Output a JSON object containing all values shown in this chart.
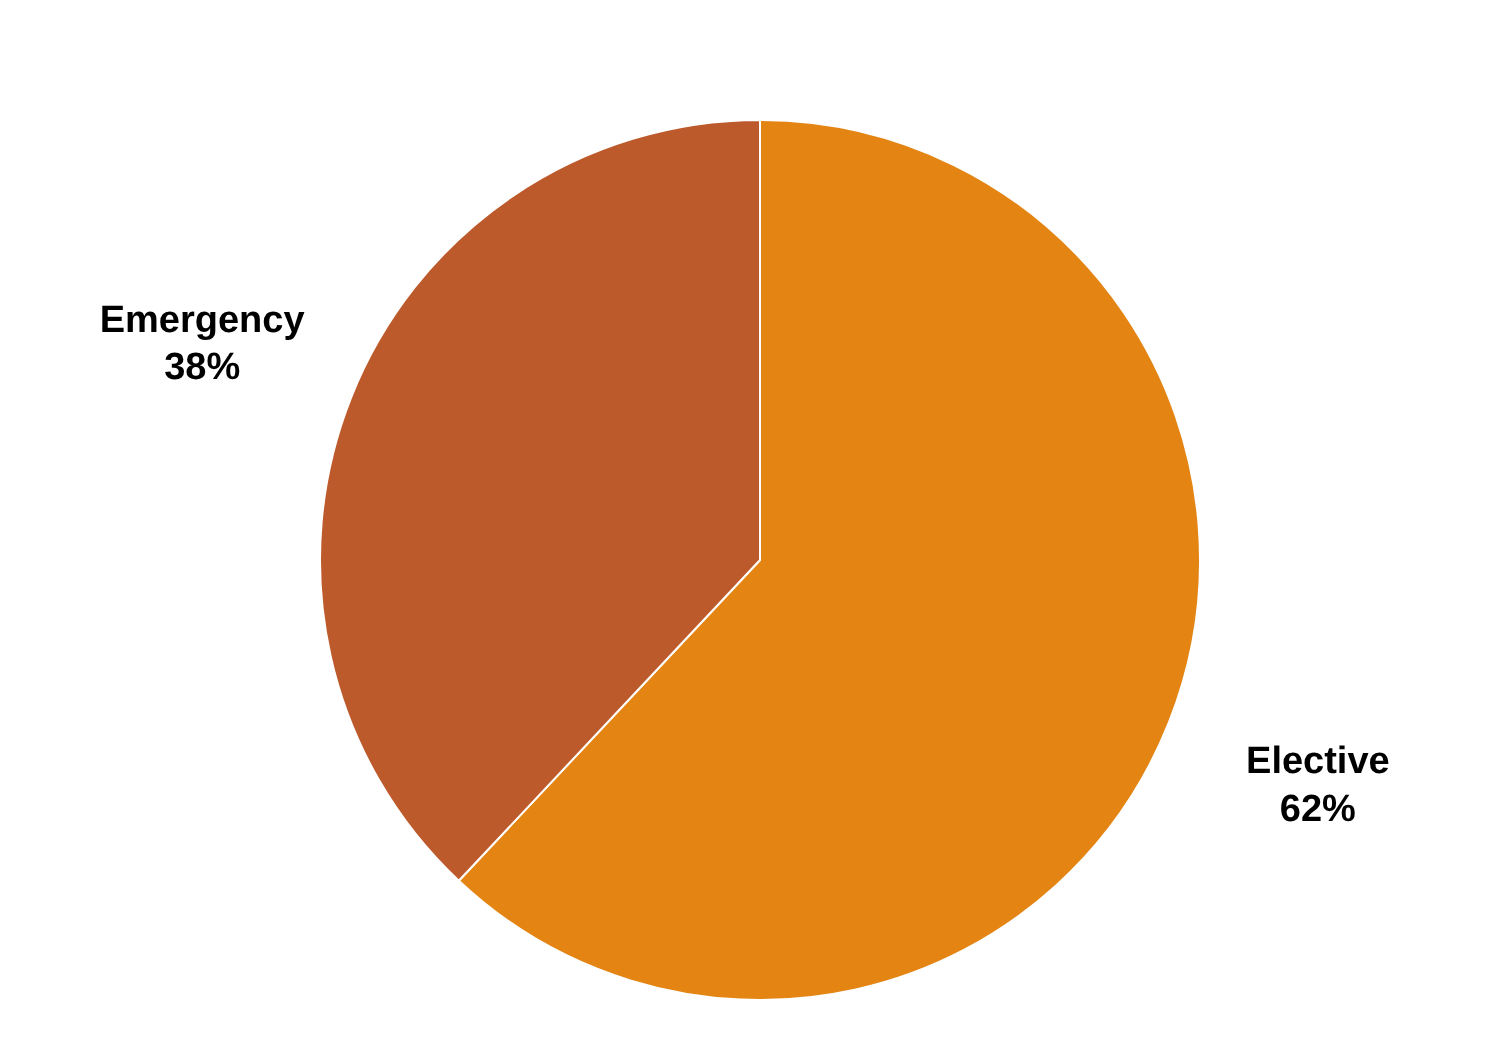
{
  "chart_data": {
    "type": "pie",
    "categories": [
      "Elective",
      "Emergency"
    ],
    "values": [
      62,
      38
    ],
    "colors": [
      "#e38413",
      "#bd5a2c"
    ],
    "value_labels": [
      "62%",
      "38%"
    ],
    "legend": false
  }
}
